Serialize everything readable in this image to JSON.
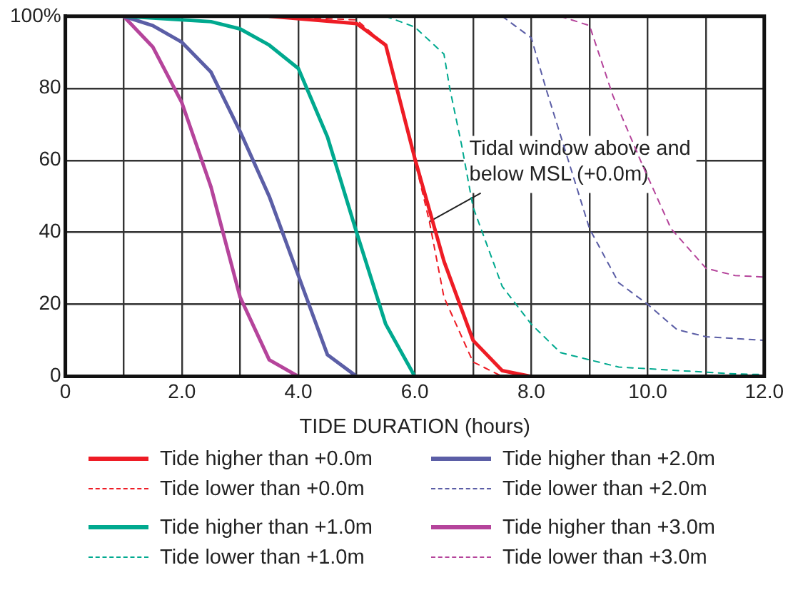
{
  "chart_data": {
    "type": "line",
    "xlabel": "TIDE DURATION (hours)",
    "xlim": [
      0,
      12
    ],
    "xticks": [
      0,
      {
        "value": 1,
        "label": null
      },
      {
        "value": 2,
        "label": "2.0"
      },
      {
        "value": 3,
        "label": null
      },
      {
        "value": 4,
        "label": "4.0"
      },
      {
        "value": 5,
        "label": null
      },
      {
        "value": 6,
        "label": "6.0"
      },
      {
        "value": 7,
        "label": null
      },
      {
        "value": 8,
        "label": "8.0"
      },
      {
        "value": 9,
        "label": null
      },
      {
        "value": 10,
        "label": "10.0"
      },
      {
        "value": 11,
        "label": null
      },
      {
        "value": 12,
        "label": "12.0"
      }
    ],
    "ylim": [
      0,
      100
    ],
    "yticks": [
      0,
      20,
      40,
      60,
      80,
      {
        "value": 100,
        "label": "100%"
      }
    ],
    "grid": true,
    "legend": "bottom",
    "marker": "none",
    "annotations": [
      {
        "text": "Tidal window above and below MSL (+0.0m)",
        "x": 6.25,
        "y": 43
      }
    ],
    "series": [
      {
        "name": "Tide higher than +0.0m",
        "color": "#ee1c25",
        "line_style": "solid",
        "x": [
          3.5,
          5.0,
          5.5,
          6.0,
          6.5,
          7.0,
          7.5,
          8.0
        ],
        "values": [
          100,
          98,
          92,
          60.5,
          32,
          10,
          1.6,
          0
        ]
      },
      {
        "name": "Tide lower than +0.0m",
        "color": "#ee1c25",
        "line_style": "dashed",
        "x": [
          3.5,
          5.0,
          5.5,
          6.0,
          6.25,
          6.5,
          7.0,
          7.5
        ],
        "values": [
          100,
          99,
          92,
          60,
          43,
          22,
          4,
          0
        ]
      },
      {
        "name": "Tide higher than +1.0m",
        "color": "#00a98f",
        "line_style": "solid",
        "x": [
          1.0,
          2.0,
          2.5,
          3.0,
          3.5,
          4.0,
          4.5,
          5.0,
          5.5,
          6.0
        ],
        "values": [
          100,
          99,
          98.5,
          96.5,
          92,
          85.5,
          66.5,
          40,
          14.5,
          0
        ]
      },
      {
        "name": "Tide lower than +1.0m",
        "color": "#00a98f",
        "line_style": "dashed",
        "x": [
          5.5,
          6.0,
          6.5,
          6.6,
          6.8,
          7.0,
          7.5,
          8.0,
          8.5,
          9.5,
          11.5,
          12.0
        ],
        "values": [
          100,
          97,
          89.5,
          80,
          64.5,
          47,
          25,
          14.5,
          6.6,
          2.6,
          0.7,
          0.5
        ]
      },
      {
        "name": "Tide higher than +2.0m",
        "color": "#5b5ea6",
        "line_style": "solid",
        "x": [
          1.0,
          1.5,
          2.0,
          2.5,
          3.0,
          3.5,
          4.0,
          4.5,
          5.0
        ],
        "values": [
          100,
          97.4,
          92.8,
          84.5,
          68,
          50,
          28,
          6,
          0
        ]
      },
      {
        "name": "Tide lower than +2.0m",
        "color": "#5b5ea6",
        "line_style": "dashed",
        "x": [
          7.5,
          8.0,
          8.25,
          8.5,
          9.0,
          9.5,
          10.0,
          10.5,
          11.0,
          12.0
        ],
        "values": [
          100,
          94,
          80,
          67,
          41,
          26,
          20,
          13,
          11,
          10
        ]
      },
      {
        "name": "Tide higher than +3.0m",
        "color": "#b5449b",
        "line_style": "solid",
        "x": [
          1.0,
          1.5,
          2.0,
          2.5,
          3.0,
          3.5,
          4.0
        ],
        "values": [
          100,
          91.5,
          76,
          52.6,
          22,
          4.6,
          0
        ]
      },
      {
        "name": "Tide lower than +3.0m",
        "color": "#b5449b",
        "line_style": "dashed",
        "x": [
          8.5,
          9.0,
          9.4,
          9.9,
          10.4,
          11.0,
          11.5,
          12.0
        ],
        "values": [
          100,
          97.4,
          78,
          59,
          41,
          30,
          28,
          27.6
        ]
      }
    ]
  }
}
